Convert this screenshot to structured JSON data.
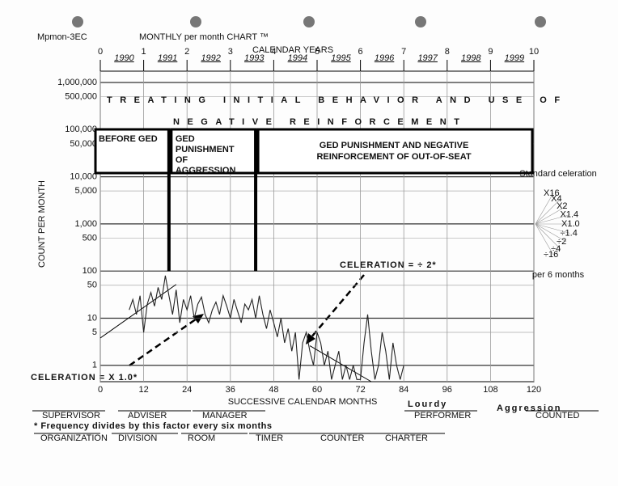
{
  "chart_data": {
    "type": "line",
    "chart_id": "Mpmon-3EC",
    "chart_name": "MONTHLY per month CHART ™",
    "top_axis_label": "CALENDAR YEARS",
    "calendar_years": [
      "1990",
      "1991",
      "1992",
      "1993",
      "1994",
      "1995",
      "1996",
      "1997",
      "1998",
      "1999"
    ],
    "x2lim": [
      0,
      10
    ],
    "x2ticks": [
      0,
      1,
      2,
      3,
      4,
      5,
      6,
      7,
      8,
      9,
      10
    ],
    "title_lines": [
      "TREATING INITIAL BEHAVIOR AND USE OF",
      "NEGATIVE REINFORCEMENT"
    ],
    "phases": [
      {
        "label": "BEFORE GED",
        "start": 0,
        "end": 19
      },
      {
        "label": "GED PUNISHMENT OF AGGRESSION",
        "start": 19,
        "end": 43
      },
      {
        "label": "GED PUNISHMENT AND NEGATIVE REINFORCEMENT OF OUT-OF-SEAT",
        "start": 43,
        "end": 120
      }
    ],
    "phase_lines": [
      19,
      43
    ],
    "ylabel": "COUNT PER MONTH",
    "xlabel": "SUCCESSIVE CALENDAR MONTHS",
    "log_scale": true,
    "grid": true,
    "xlim": [
      0,
      120
    ],
    "xticks": [
      0,
      12,
      24,
      36,
      48,
      60,
      72,
      84,
      96,
      108,
      120
    ],
    "ylim": [
      0.45,
      1000000
    ],
    "yticks": [
      {
        "value": 1000000,
        "label": "1,000,000"
      },
      {
        "value": 500000,
        "label": "500,000"
      },
      {
        "value": 100000,
        "label": "100,000"
      },
      {
        "value": 50000,
        "label": "50,000"
      },
      {
        "value": 10000,
        "label": "10,000"
      },
      {
        "value": 5000,
        "label": "5,000"
      },
      {
        "value": 1000,
        "label": "1,000"
      },
      500,
      100,
      50,
      10,
      5,
      1
    ],
    "x": [
      8,
      9,
      10,
      11,
      12,
      13,
      14,
      15,
      16,
      17,
      18,
      19,
      20,
      21,
      22,
      23,
      24,
      25,
      26,
      27,
      28,
      29,
      30,
      31,
      32,
      33,
      34,
      35,
      36,
      37,
      38,
      39,
      40,
      41,
      42,
      43,
      44,
      45,
      46,
      47,
      48,
      49,
      50,
      51,
      52,
      53,
      54,
      55,
      56,
      57,
      58,
      59,
      60,
      61,
      62,
      63,
      64,
      65,
      66,
      67,
      68,
      69,
      70,
      71,
      72,
      73,
      74,
      75,
      76,
      77,
      78,
      79,
      80,
      81,
      82,
      83,
      84
    ],
    "series": [
      {
        "name": "Aggression",
        "color": "#222222",
        "values": [
          15,
          25,
          12,
          30,
          5,
          20,
          35,
          18,
          45,
          25,
          80,
          30,
          12,
          40,
          8,
          25,
          15,
          30,
          10,
          20,
          28,
          12,
          8,
          15,
          22,
          12,
          30,
          18,
          10,
          25,
          14,
          8,
          20,
          15,
          25,
          10,
          30,
          12,
          6,
          15,
          8,
          4,
          10,
          3,
          6,
          2,
          5,
          0.5,
          3,
          5,
          2,
          1,
          5,
          3,
          1,
          2,
          0.5,
          1,
          2,
          0.5,
          1,
          0.5,
          1,
          0.5,
          0.5,
          3,
          12,
          2,
          0.5,
          1,
          5,
          2,
          0.5,
          3,
          1,
          0.5,
          1
        ]
      }
    ],
    "trend_lines": [
      {
        "x": [
          0,
          21
        ],
        "values": [
          3.8,
          52
        ]
      },
      {
        "x": [
          58,
          75
        ],
        "values": [
          2.6,
          0.45
        ]
      }
    ],
    "annotations": [
      "CELERATION = ÷ 2*",
      "CELERATION = X 1.0*"
    ],
    "celeration_fan": {
      "title": "Standard celeration",
      "labels": [
        "X16",
        "X4",
        "X2",
        "X1.4",
        "X1.0",
        "÷1.4",
        "÷2",
        "÷4",
        "÷16"
      ],
      "footer": "per 6 months"
    },
    "footer": {
      "fields_row1": [
        "SUPERVISOR",
        "ADVISER",
        "MANAGER",
        "PERFORMER",
        "COUNTED"
      ],
      "performer": "Lourdy",
      "counted": "Aggression",
      "footnote": "* Frequency divides by this factor every six months",
      "fields_row2": [
        "ORGANIZATION",
        "DIVISION",
        "ROOM",
        "TIMER",
        "COUNTER",
        "CHARTER"
      ]
    }
  }
}
